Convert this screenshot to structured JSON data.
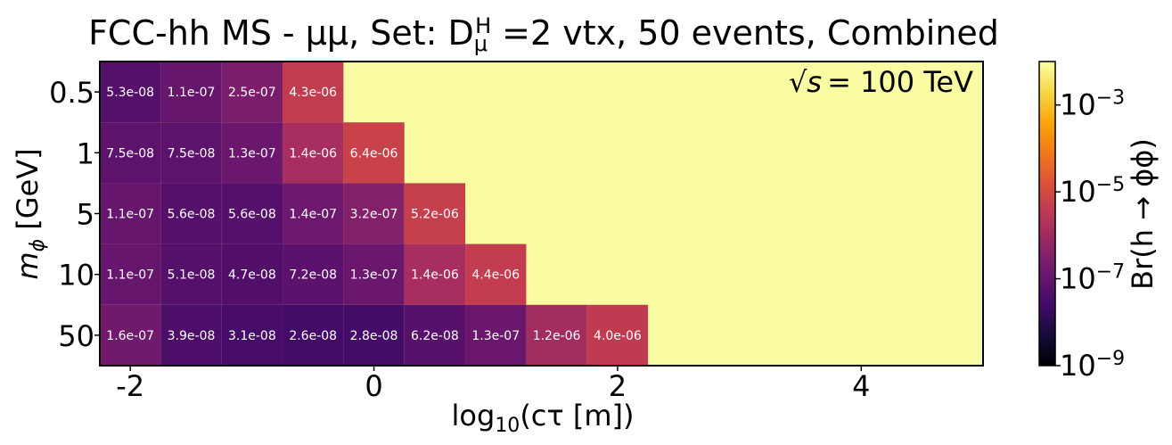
{
  "chart_data": {
    "type": "heatmap",
    "title": "FCC-hh MS - μμ, Set: D",
    "title_sub": "μ",
    "title_sup": "H",
    "title_tail": "=2 vtx, 50 events, Combined",
    "annotation_sqrt": "√s",
    "annotation_rest": "= 100 TeV",
    "xlabel_main": "log",
    "xlabel_sub": "10",
    "xlabel_rest": "(cτ [m])",
    "ylabel_main": "m",
    "ylabel_sub": "ϕ",
    "ylabel_rest": " [GeV]",
    "colorbar_label": "Br(h → ϕϕ)",
    "x_ticks": [
      {
        "value": -2,
        "label": "-2"
      },
      {
        "value": 0,
        "label": "0"
      },
      {
        "value": 2,
        "label": "2"
      },
      {
        "value": 4,
        "label": "4"
      }
    ],
    "xlim": [
      -2.25,
      5.0
    ],
    "x_bin_centers": [
      -2.0,
      -1.5,
      -1.0,
      -0.5,
      0.0,
      0.5,
      1.0,
      1.5,
      2.0
    ],
    "y_categories": [
      "0.5",
      "1",
      "5",
      "10",
      "50"
    ],
    "colorbar": {
      "scale": "log",
      "range": [
        1e-09,
        0.01
      ],
      "colormap": "inferno",
      "ticks": [
        {
          "value": 0.001,
          "base": "10",
          "exp": "−3"
        },
        {
          "value": 1e-05,
          "base": "10",
          "exp": "−5"
        },
        {
          "value": 1e-07,
          "base": "10",
          "exp": "−7"
        },
        {
          "value": 1e-09,
          "base": "10",
          "exp": "−9"
        }
      ]
    },
    "background_color": "#fafca3",
    "rows": [
      {
        "m_phi": "0.5",
        "values": [
          5.3e-08,
          1.1e-07,
          2.5e-07,
          4.3e-06
        ],
        "labels": [
          "5.3e-08",
          "1.1e-07",
          "2.5e-07",
          "4.3e-06"
        ]
      },
      {
        "m_phi": "1",
        "values": [
          7.5e-08,
          7.5e-08,
          1.3e-07,
          1.4e-06,
          6.4e-06
        ],
        "labels": [
          "7.5e-08",
          "7.5e-08",
          "1.3e-07",
          "1.4e-06",
          "6.4e-06"
        ]
      },
      {
        "m_phi": "5",
        "values": [
          1.1e-07,
          5.6e-08,
          5.6e-08,
          1.4e-07,
          3.2e-07,
          5.2e-06
        ],
        "labels": [
          "1.1e-07",
          "5.6e-08",
          "5.6e-08",
          "1.4e-07",
          "3.2e-07",
          "5.2e-06"
        ]
      },
      {
        "m_phi": "10",
        "values": [
          1.1e-07,
          5.1e-08,
          4.7e-08,
          7.2e-08,
          1.3e-07,
          1.4e-06,
          4.4e-06
        ],
        "labels": [
          "1.1e-07",
          "5.1e-08",
          "4.7e-08",
          "7.2e-08",
          "1.3e-07",
          "1.4e-06",
          "4.4e-06"
        ]
      },
      {
        "m_phi": "50",
        "values": [
          1.6e-07,
          3.9e-08,
          3.1e-08,
          2.6e-08,
          2.8e-08,
          6.2e-08,
          1.3e-07,
          1.2e-06,
          4e-06
        ],
        "labels": [
          "1.6e-07",
          "3.9e-08",
          "3.1e-08",
          "2.6e-08",
          "2.8e-08",
          "6.2e-08",
          "1.3e-07",
          "1.2e-06",
          "4.0e-06"
        ]
      }
    ]
  }
}
